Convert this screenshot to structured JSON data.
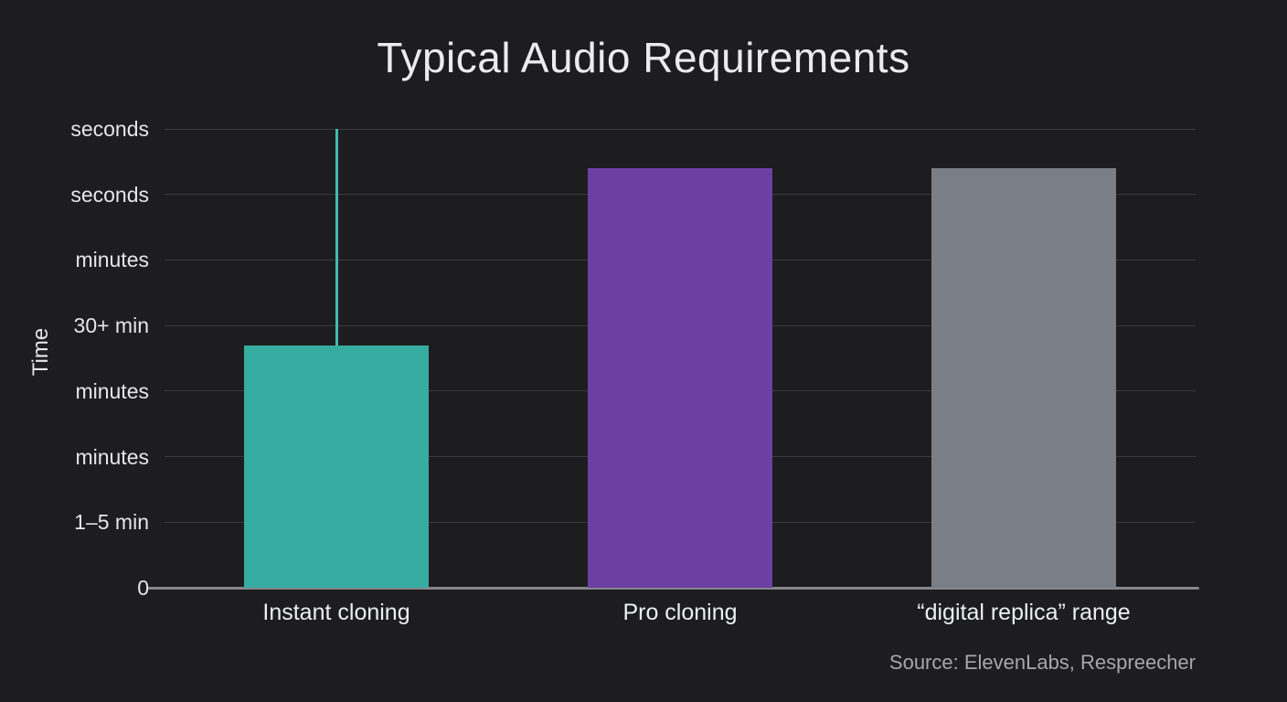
{
  "page": {
    "background": "#1d1d1f"
  },
  "chart_data": {
    "type": "bar",
    "title": "Typical Audio Requirements",
    "ylabel": "Time",
    "xlabel": "",
    "categories": [
      "Instant cloning",
      "Pro cloning",
      "“digital replica” range"
    ],
    "values_level_units": [
      3.7,
      6.4,
      6.4
    ],
    "units_note": "y axis is ordinal; values are level indices into ytick_labels",
    "ytick_labels": [
      "0",
      "1–5 min",
      "minutes",
      "minutes",
      "30+ min",
      "minutes",
      "seconds",
      "seconds"
    ],
    "ylim": [
      0,
      7
    ],
    "grid": true,
    "legend": false,
    "bar_colors": [
      "#36aba0",
      "#6b3fa4",
      "#7a7e86"
    ],
    "error_whisker": {
      "category_index": 0,
      "from_level": 3.7,
      "to_level": 7.0,
      "color": "#3fbcb0"
    },
    "source": "Source: ElevenLabs, Respreecher",
    "colors": {
      "background": "#1d1d1f",
      "gridline": "#3a3a3e",
      "axis_line": "#85858a",
      "text": "#e6e6ea",
      "muted_text": "#a6a6ad"
    }
  }
}
